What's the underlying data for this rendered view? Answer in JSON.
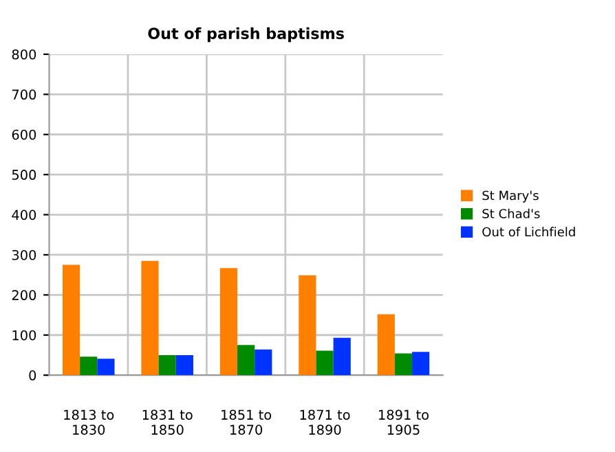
{
  "chart_data": {
    "type": "bar",
    "title": "Out of parish baptisms",
    "categories": [
      "1813 to\n1830",
      "1831 to\n1850",
      "1851 to\n1870",
      "1871 to\n1890",
      "1891 to\n1905"
    ],
    "series": [
      {
        "name": "St Mary's",
        "color": "#ff7f00",
        "values": [
          275,
          285,
          267,
          249,
          152
        ]
      },
      {
        "name": "St Chad's",
        "color": "#008a00",
        "values": [
          46,
          50,
          75,
          61,
          54
        ]
      },
      {
        "name": "Out of Lichfield",
        "color": "#0033ff",
        "values": [
          41,
          50,
          64,
          93,
          58
        ]
      }
    ],
    "ylim": [
      0,
      800
    ],
    "yticks": [
      0,
      100,
      200,
      300,
      400,
      500,
      600,
      700,
      800
    ],
    "grid": true,
    "legend": "right"
  }
}
